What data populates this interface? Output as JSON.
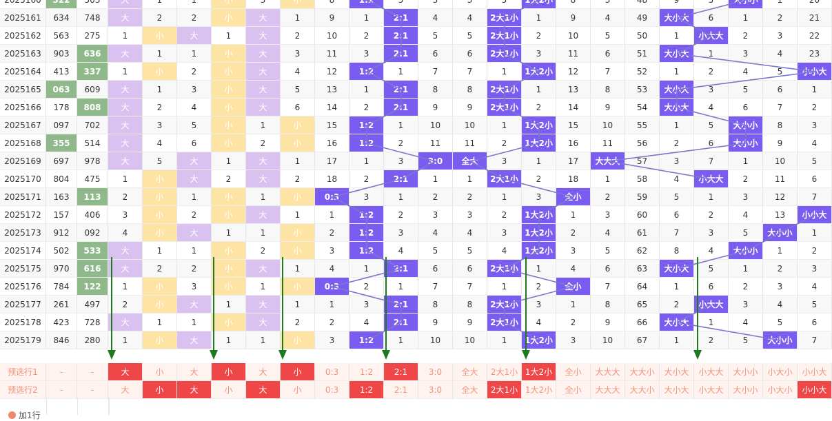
{
  "rows": [
    [
      "2025160",
      "322",
      "503",
      "大",
      "1",
      "1",
      "小",
      "3",
      "小",
      "8",
      "1:2",
      "5",
      "3",
      "3",
      "5",
      "1大2小",
      "8",
      "3",
      "48",
      "9",
      "5",
      "大小小",
      "1",
      "20"
    ],
    [
      "2025161",
      "634",
      "748",
      "大",
      "2",
      "2",
      "小",
      "大",
      "1",
      "9",
      "1",
      "2:1",
      "4",
      "4",
      "2大1小",
      "1",
      "9",
      "4",
      "49",
      "大小大",
      "6",
      "1",
      "2",
      "21"
    ],
    [
      "2025162",
      "563",
      "275",
      "1",
      "小",
      "大",
      "1",
      "大",
      "2",
      "10",
      "2",
      "2:1",
      "5",
      "5",
      "2大1小",
      "2",
      "10",
      "5",
      "50",
      "1",
      "小大大",
      "2",
      "3",
      "22"
    ],
    [
      "2025163",
      "903",
      "636",
      "大",
      "1",
      "1",
      "小",
      "大",
      "3",
      "11",
      "3",
      "2:1",
      "6",
      "6",
      "2大1小",
      "3",
      "11",
      "6",
      "51",
      "大小大",
      "1",
      "3",
      "4",
      "23"
    ],
    [
      "2025164",
      "413",
      "337",
      "1",
      "小",
      "2",
      "小",
      "大",
      "4",
      "12",
      "1:2",
      "1",
      "7",
      "7",
      "1",
      "1大2小",
      "12",
      "7",
      "52",
      "1",
      "2",
      "4",
      "5",
      "小小大"
    ],
    [
      "2025165",
      "063",
      "609",
      "大",
      "1",
      "3",
      "小",
      "大",
      "5",
      "13",
      "1",
      "2:1",
      "8",
      "8",
      "2大1小",
      "1",
      "13",
      "8",
      "53",
      "大小大",
      "3",
      "5",
      "6",
      "1"
    ],
    [
      "2025166",
      "178",
      "808",
      "大",
      "2",
      "4",
      "小",
      "大",
      "6",
      "14",
      "2",
      "2:1",
      "9",
      "9",
      "2大1小",
      "2",
      "14",
      "9",
      "54",
      "大小大",
      "4",
      "6",
      "7",
      "2"
    ],
    [
      "2025167",
      "097",
      "702",
      "大",
      "3",
      "5",
      "小",
      "1",
      "小",
      "15",
      "1:2",
      "1",
      "10",
      "10",
      "1",
      "1大2小",
      "15",
      "10",
      "55",
      "1",
      "5",
      "大小小",
      "8",
      "3"
    ],
    [
      "2025168",
      "355",
      "514",
      "大",
      "4",
      "6",
      "小",
      "2",
      "小",
      "16",
      "1:2",
      "2",
      "11",
      "11",
      "2",
      "1大2小",
      "16",
      "11",
      "56",
      "2",
      "6",
      "大小小",
      "9",
      "4"
    ],
    [
      "2025169",
      "697",
      "978",
      "大",
      "5",
      "大",
      "1",
      "大",
      "1",
      "17",
      "1",
      "3",
      "3:0",
      "全大",
      "3",
      "1",
      "17",
      "大大大",
      "57",
      "3",
      "7",
      "1",
      "10",
      "5"
    ],
    [
      "2025170",
      "804",
      "475",
      "1",
      "小",
      "大",
      "2",
      "大",
      "2",
      "18",
      "2",
      "2:1",
      "1",
      "1",
      "2大1小",
      "2",
      "18",
      "1",
      "58",
      "4",
      "小大大",
      "2",
      "11",
      "6"
    ],
    [
      "2025171",
      "163",
      "113",
      "2",
      "小",
      "1",
      "小",
      "1",
      "小",
      "0:3",
      "3",
      "1",
      "2",
      "2",
      "1",
      "3",
      "全小",
      "2",
      "59",
      "5",
      "1",
      "3",
      "12",
      "7"
    ],
    [
      "2025172",
      "157",
      "406",
      "3",
      "小",
      "2",
      "小",
      "大",
      "1",
      "1",
      "1:2",
      "2",
      "3",
      "3",
      "2",
      "1大2小",
      "1",
      "3",
      "60",
      "6",
      "2",
      "4",
      "13",
      "小小大"
    ],
    [
      "2025173",
      "912",
      "092",
      "4",
      "小",
      "大",
      "1",
      "1",
      "小",
      "2",
      "1:2",
      "3",
      "4",
      "4",
      "3",
      "1大2小",
      "2",
      "4",
      "61",
      "7",
      "3",
      "5",
      "大小小",
      "1"
    ],
    [
      "2025174",
      "502",
      "533",
      "大",
      "1",
      "1",
      "小",
      "2",
      "小",
      "3",
      "1:2",
      "4",
      "5",
      "5",
      "4",
      "1大2小",
      "3",
      "5",
      "62",
      "8",
      "4",
      "大小小",
      "1",
      "2"
    ],
    [
      "2025175",
      "970",
      "616",
      "大",
      "2",
      "2",
      "小",
      "大",
      "1",
      "4",
      "1",
      "2:1",
      "6",
      "6",
      "2大1小",
      "1",
      "4",
      "6",
      "63",
      "大小大",
      "5",
      "1",
      "2",
      "3"
    ],
    [
      "2025176",
      "784",
      "122",
      "1",
      "小",
      "3",
      "小",
      "1",
      "小",
      "0:3",
      "2",
      "1",
      "7",
      "7",
      "1",
      "2",
      "全小",
      "7",
      "64",
      "1",
      "6",
      "2",
      "3",
      "4"
    ],
    [
      "2025177",
      "261",
      "497",
      "2",
      "小",
      "大",
      "1",
      "大",
      "1",
      "1",
      "3",
      "2:1",
      "8",
      "8",
      "2大1小",
      "3",
      "1",
      "8",
      "65",
      "2",
      "小大大",
      "3",
      "4",
      "5"
    ],
    [
      "2025178",
      "423",
      "728",
      "大",
      "1",
      "1",
      "小",
      "大",
      "2",
      "2",
      "4",
      "2:1",
      "9",
      "9",
      "2大1小",
      "4",
      "2",
      "9",
      "66",
      "大小大",
      "1",
      "4",
      "5",
      "6"
    ],
    [
      "2025179",
      "846",
      "280",
      "1",
      "小",
      "大",
      "1",
      "1",
      "小",
      "3",
      "1:2",
      "1",
      "10",
      "10",
      "1",
      "1大2小",
      "3",
      "10",
      "67",
      "1",
      "2",
      "5",
      "大小小",
      "7"
    ]
  ],
  "predict": [
    [
      "预选行1",
      "-",
      "-",
      "大",
      "小",
      "大",
      "小",
      "大",
      "小",
      "0:3",
      "1:2",
      "2:1",
      "3:0",
      "全大",
      "2大1小",
      "1大2小",
      "全小",
      "大大大",
      "大大小",
      "大小大",
      "小大大",
      "大小小",
      "小大小",
      "小小大"
    ],
    [
      "预选行2",
      "-",
      "-",
      "大",
      "小",
      "大",
      "小",
      "大",
      "小",
      "0:3",
      "1:2",
      "2:1",
      "3:0",
      "全大",
      "2大1小",
      "1大2小",
      "全小",
      "大大大",
      "大大小",
      "大小大",
      "小大大",
      "大小小",
      "小大小",
      "小小大"
    ]
  ],
  "add_row_label": "加1行",
  "colors": {
    "green": "#8fb98a",
    "purple": "#d9c2f0",
    "yellow": "#fde3a4",
    "blue": "#7a5cf0",
    "red": "#ef4747",
    "line": "#7a78cc",
    "arrow": "#1f7a1f"
  }
}
